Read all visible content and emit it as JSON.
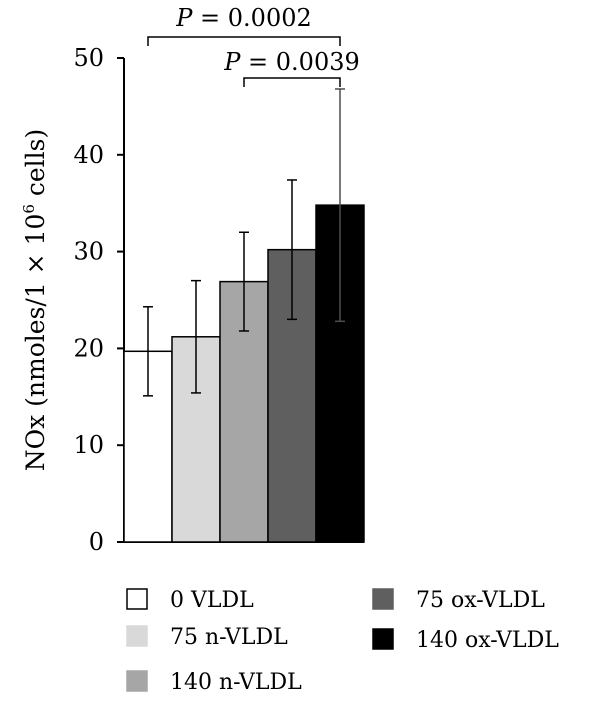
{
  "chart_data": {
    "type": "bar",
    "title": "",
    "xlabel": "",
    "ylabel": "NOx (nmoles/1 × 10",
    "ylabel_superscript": "6",
    "ylabel_suffix": " cells)",
    "ylim": [
      0,
      50
    ],
    "yticks": [
      0,
      10,
      20,
      30,
      40,
      50
    ],
    "grid": false,
    "categories": [
      "0 VLDL",
      "75 n-VLDL",
      "140 n-VLDL",
      "75 ox-VLDL",
      "140 ox-VLDL"
    ],
    "values": [
      19.7,
      21.2,
      26.9,
      30.2,
      34.8
    ],
    "errors": [
      4.6,
      5.8,
      5.1,
      7.2,
      12.0
    ],
    "colors": [
      "#ffffff",
      "#d9d9d9",
      "#a6a6a6",
      "#5f5f5f",
      "#000000"
    ],
    "significance": [
      {
        "p_prefix": "P",
        "p_value_text": " = 0.0002",
        "from": 0,
        "to": 4
      },
      {
        "p_prefix": "P",
        "p_value_text": " = 0.0039",
        "from": 2,
        "to": 4
      }
    ],
    "legend_position": "bottom"
  }
}
